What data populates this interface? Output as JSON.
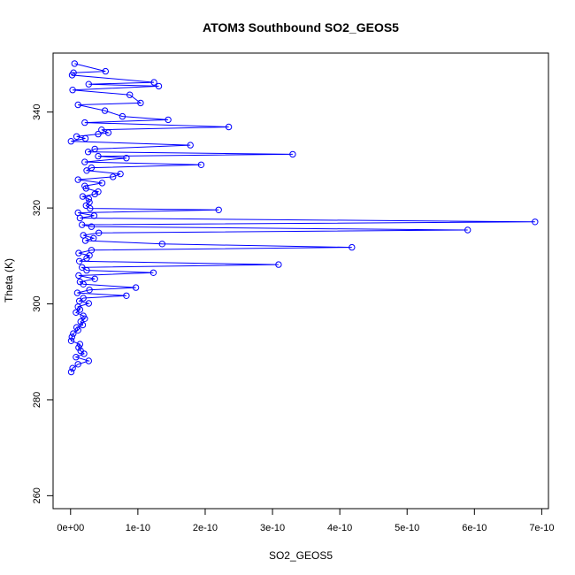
{
  "chart_data": {
    "type": "line",
    "title": "ATOM3 Southbound SO2_GEOS5",
    "xlabel": "SO2_GEOS5",
    "ylabel": "Theta (K)",
    "xlim": [
      -2.6e-11,
      7.1e-10
    ],
    "ylim": [
      257.3,
      352.3
    ],
    "xticks": [
      0,
      1e-10,
      2e-10,
      3e-10,
      4e-10,
      5e-10,
      6e-10,
      7e-10
    ],
    "xtick_labels": [
      "0e+00",
      "1e-10",
      "2e-10",
      "3e-10",
      "4e-10",
      "5e-10",
      "6e-10",
      "7e-10"
    ],
    "yticks": [
      260,
      280,
      300,
      320,
      340
    ],
    "ytick_labels": [
      "260",
      "280",
      "300",
      "320",
      "340"
    ],
    "grid": false,
    "series_color": "#0000ff",
    "markers": "open-circle",
    "x": [
      6e-12,
      5.2e-11,
      4.3e-12,
      2.3e-12,
      1.24e-10,
      2.7e-11,
      1.31e-10,
      3e-12,
      8.8e-11,
      1.04e-10,
      1.1e-11,
      5.1e-11,
      7.7e-11,
      1.45e-10,
      2.1e-11,
      2.35e-10,
      4.6e-11,
      5.6e-11,
      4.1e-11,
      9e-12,
      2.2e-11,
      7e-13,
      1.78e-10,
      3.6e-11,
      2.6e-11,
      3.3e-10,
      4.1e-11,
      8.3e-11,
      2.1e-11,
      1.94e-10,
      3.1e-11,
      2.4e-11,
      7.4e-11,
      6.3e-11,
      1.1e-11,
      4.7e-11,
      2.1e-11,
      2.3e-11,
      4.1e-11,
      3.6e-11,
      1.8e-11,
      2.7e-11,
      2.8e-11,
      2.3e-11,
      2.9e-11,
      2.2e-10,
      1.1e-11,
      3.5e-11,
      1.4e-11,
      6.9e-10,
      1.7e-11,
      3.1e-11,
      5.9e-10,
      4.2e-11,
      1.9e-11,
      3.4e-11,
      2.2e-11,
      1.36e-10,
      4.18e-10,
      3.1e-11,
      1.2e-11,
      2.8e-11,
      2.4e-11,
      1.3e-11,
      3.09e-10,
      1.7e-11,
      2.4e-11,
      1.23e-10,
      1.2e-11,
      3.6e-11,
      1.4e-11,
      1.9e-11,
      9.7e-11,
      2.8e-11,
      1e-11,
      8.3e-11,
      1.9e-11,
      1.3e-11,
      2.7e-11,
      1.1e-11,
      1.4e-11,
      8e-12,
      1.9e-11,
      2.1e-11,
      1.5e-11,
      1.8e-11,
      9e-12,
      1.1e-11,
      4e-12,
      2e-12,
      1e-12,
      1.4e-11,
      1.2e-11,
      1.5e-11,
      2e-11,
      8e-12,
      2.7e-11,
      1.1e-11,
      3e-12,
      1e-12
    ],
    "y": [
      350.1,
      348.5,
      348.2,
      347.7,
      346.2,
      345.8,
      345.4,
      344.6,
      343.6,
      341.9,
      341.5,
      340.3,
      339.1,
      338.4,
      337.8,
      336.9,
      336.3,
      335.7,
      335.4,
      334.9,
      334.5,
      333.9,
      333.1,
      332.3,
      331.7,
      331.2,
      330.8,
      330.4,
      329.6,
      329.0,
      328.4,
      327.8,
      327.1,
      326.5,
      325.9,
      325.2,
      324.6,
      324.1,
      323.4,
      322.9,
      322.4,
      321.9,
      321.2,
      320.5,
      319.9,
      319.6,
      319.0,
      318.4,
      317.9,
      317.1,
      316.5,
      316.1,
      315.4,
      314.8,
      314.3,
      313.7,
      313.2,
      312.5,
      311.8,
      311.2,
      310.6,
      310.1,
      309.5,
      308.9,
      308.2,
      307.6,
      307.0,
      306.5,
      305.9,
      305.2,
      304.6,
      304.1,
      303.4,
      302.9,
      302.3,
      301.7,
      301.2,
      300.6,
      300.1,
      299.4,
      298.8,
      298.2,
      297.5,
      296.9,
      296.3,
      295.6,
      295.1,
      294.5,
      293.8,
      293.1,
      292.3,
      291.6,
      290.9,
      290.2,
      289.6,
      288.9,
      288.1,
      287.4,
      286.6,
      285.8
    ]
  }
}
